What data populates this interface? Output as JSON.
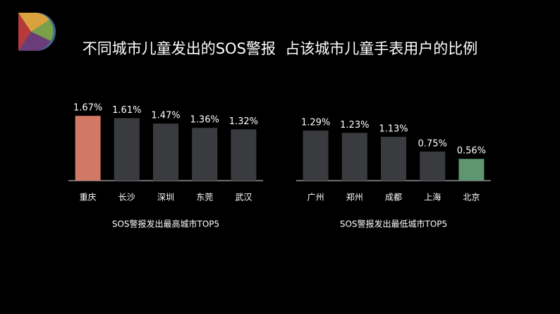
{
  "title": "不同城市儿童发出的SOS警报  占该城市儿童手表用户的比例",
  "chart_data": [
    {
      "type": "bar",
      "xlabel": "SOS警报发出最高城市TOP5",
      "categories": [
        "重庆",
        "长沙",
        "深圳",
        "东莞",
        "武汉"
      ],
      "values": [
        1.67,
        1.61,
        1.47,
        1.36,
        1.32
      ],
      "value_labels": [
        "1.67%",
        "1.61%",
        "1.47%",
        "1.36%",
        "1.32%"
      ],
      "colors": [
        "#d27866",
        "#3a3b3f",
        "#3a3b3f",
        "#3a3b3f",
        "#3a3b3f"
      ]
    },
    {
      "type": "bar",
      "xlabel": "SOS警报发出最低城市TOP5",
      "categories": [
        "广州",
        "郑州",
        "成都",
        "上海",
        "北京"
      ],
      "values": [
        1.29,
        1.23,
        1.13,
        0.75,
        0.56
      ],
      "value_labels": [
        "1.29%",
        "1.23%",
        "1.13%",
        "0.75%",
        "0.56%"
      ],
      "colors": [
        "#3a3b3f",
        "#3a3b3f",
        "#3a3b3f",
        "#3a3b3f",
        "#5e9672"
      ]
    }
  ]
}
